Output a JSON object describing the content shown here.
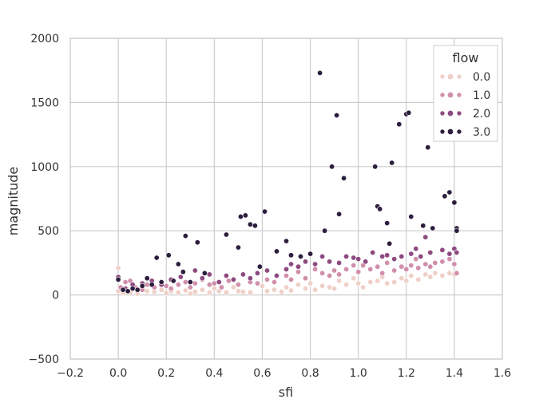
{
  "chart_data": {
    "type": "scatter",
    "xlabel": "sfi",
    "ylabel": "magnitude",
    "xlim": [
      -0.2,
      1.6
    ],
    "ylim": [
      -500,
      2000
    ],
    "xticks": [
      "−0.2",
      "0.0",
      "0.2",
      "0.4",
      "0.6",
      "0.8",
      "1.0",
      "1.2",
      "1.4",
      "1.6"
    ],
    "yticks": [
      "−500",
      "0",
      "500",
      "1000",
      "1500",
      "2000"
    ],
    "grid": true,
    "legend": {
      "title": "flow",
      "placement": "top-right"
    },
    "series": [
      {
        "name": "0.0",
        "color": "#efd0c8",
        "points": [
          [
            0.0,
            210
          ],
          [
            0.0,
            30
          ],
          [
            0.02,
            15
          ],
          [
            0.05,
            20
          ],
          [
            0.08,
            10
          ],
          [
            0.12,
            30
          ],
          [
            0.15,
            25
          ],
          [
            0.18,
            40
          ],
          [
            0.2,
            15
          ],
          [
            0.22,
            30
          ],
          [
            0.25,
            20
          ],
          [
            0.28,
            35
          ],
          [
            0.3,
            10
          ],
          [
            0.32,
            25
          ],
          [
            0.35,
            40
          ],
          [
            0.38,
            20
          ],
          [
            0.4,
            50
          ],
          [
            0.42,
            30
          ],
          [
            0.45,
            20
          ],
          [
            0.48,
            60
          ],
          [
            0.5,
            30
          ],
          [
            0.52,
            25
          ],
          [
            0.55,
            20
          ],
          [
            0.6,
            70
          ],
          [
            0.62,
            30
          ],
          [
            0.65,
            40
          ],
          [
            0.68,
            25
          ],
          [
            0.7,
            60
          ],
          [
            0.72,
            35
          ],
          [
            0.75,
            80
          ],
          [
            0.78,
            50
          ],
          [
            0.8,
            90
          ],
          [
            0.82,
            40
          ],
          [
            0.85,
            70
          ],
          [
            0.88,
            60
          ],
          [
            0.9,
            50
          ],
          [
            0.92,
            110
          ],
          [
            0.95,
            80
          ],
          [
            0.98,
            130
          ],
          [
            1.0,
            90
          ],
          [
            1.02,
            60
          ],
          [
            1.05,
            100
          ],
          [
            1.08,
            110
          ],
          [
            1.1,
            140
          ],
          [
            1.12,
            90
          ],
          [
            1.15,
            100
          ],
          [
            1.18,
            130
          ],
          [
            1.2,
            110
          ],
          [
            1.22,
            150
          ],
          [
            1.25,
            120
          ],
          [
            1.28,
            160
          ],
          [
            1.3,
            140
          ],
          [
            1.32,
            170
          ],
          [
            1.35,
            150
          ],
          [
            1.38,
            170
          ],
          [
            1.4,
            160
          ]
        ]
      },
      {
        "name": "1.0",
        "color": "#d08fab",
        "points": [
          [
            0.01,
            60
          ],
          [
            0.03,
            100
          ],
          [
            0.05,
            110
          ],
          [
            0.07,
            60
          ],
          [
            0.1,
            40
          ],
          [
            0.12,
            80
          ],
          [
            0.15,
            60
          ],
          [
            0.18,
            90
          ],
          [
            0.2,
            70
          ],
          [
            0.22,
            50
          ],
          [
            0.25,
            80
          ],
          [
            0.28,
            100
          ],
          [
            0.3,
            60
          ],
          [
            0.32,
            90
          ],
          [
            0.35,
            120
          ],
          [
            0.38,
            80
          ],
          [
            0.4,
            90
          ],
          [
            0.43,
            60
          ],
          [
            0.46,
            110
          ],
          [
            0.5,
            80
          ],
          [
            0.55,
            100
          ],
          [
            0.58,
            90
          ],
          [
            0.62,
            120
          ],
          [
            0.65,
            100
          ],
          [
            0.7,
            150
          ],
          [
            0.72,
            120
          ],
          [
            0.75,
            180
          ],
          [
            0.78,
            130
          ],
          [
            0.82,
            200
          ],
          [
            0.85,
            170
          ],
          [
            0.88,
            150
          ],
          [
            0.9,
            190
          ],
          [
            0.92,
            160
          ],
          [
            0.95,
            200
          ],
          [
            0.98,
            230
          ],
          [
            1.0,
            180
          ],
          [
            1.02,
            230
          ],
          [
            1.05,
            200
          ],
          [
            1.08,
            220
          ],
          [
            1.1,
            170
          ],
          [
            1.12,
            250
          ],
          [
            1.15,
            190
          ],
          [
            1.18,
            220
          ],
          [
            1.2,
            200
          ],
          [
            1.22,
            230
          ],
          [
            1.24,
            280
          ],
          [
            1.25,
            210
          ],
          [
            1.28,
            240
          ],
          [
            1.3,
            220
          ],
          [
            1.32,
            250
          ],
          [
            1.35,
            260
          ],
          [
            1.38,
            280
          ],
          [
            1.4,
            240
          ],
          [
            1.41,
            170
          ]
        ]
      },
      {
        "name": "2.0",
        "color": "#8d4a80",
        "points": [
          [
            0.0,
            140
          ],
          [
            0.03,
            50
          ],
          [
            0.06,
            80
          ],
          [
            0.1,
            90
          ],
          [
            0.14,
            110
          ],
          [
            0.18,
            80
          ],
          [
            0.22,
            120
          ],
          [
            0.26,
            140
          ],
          [
            0.3,
            100
          ],
          [
            0.32,
            190
          ],
          [
            0.35,
            130
          ],
          [
            0.38,
            160
          ],
          [
            0.42,
            100
          ],
          [
            0.45,
            150
          ],
          [
            0.48,
            120
          ],
          [
            0.52,
            160
          ],
          [
            0.55,
            130
          ],
          [
            0.58,
            170
          ],
          [
            0.62,
            190
          ],
          [
            0.66,
            150
          ],
          [
            0.7,
            200
          ],
          [
            0.72,
            240
          ],
          [
            0.75,
            220
          ],
          [
            0.78,
            260
          ],
          [
            0.82,
            240
          ],
          [
            0.85,
            300
          ],
          [
            0.88,
            260
          ],
          [
            0.92,
            250
          ],
          [
            0.95,
            300
          ],
          [
            0.98,
            290
          ],
          [
            1.0,
            280
          ],
          [
            1.03,
            260
          ],
          [
            1.06,
            330
          ],
          [
            1.1,
            300
          ],
          [
            1.12,
            310
          ],
          [
            1.15,
            280
          ],
          [
            1.18,
            300
          ],
          [
            1.22,
            320
          ],
          [
            1.24,
            360
          ],
          [
            1.26,
            300
          ],
          [
            1.28,
            450
          ],
          [
            1.3,
            330
          ],
          [
            1.35,
            350
          ],
          [
            1.38,
            320
          ],
          [
            1.4,
            360
          ],
          [
            1.41,
            330
          ]
        ]
      },
      {
        "name": "3.0",
        "color": "#2d1e3e",
        "points": [
          [
            0.0,
            120
          ],
          [
            0.02,
            40
          ],
          [
            0.04,
            30
          ],
          [
            0.06,
            50
          ],
          [
            0.08,
            40
          ],
          [
            0.1,
            70
          ],
          [
            0.12,
            130
          ],
          [
            0.14,
            80
          ],
          [
            0.16,
            290
          ],
          [
            0.18,
            100
          ],
          [
            0.21,
            310
          ],
          [
            0.23,
            110
          ],
          [
            0.25,
            240
          ],
          [
            0.27,
            180
          ],
          [
            0.28,
            460
          ],
          [
            0.3,
            100
          ],
          [
            0.33,
            410
          ],
          [
            0.36,
            170
          ],
          [
            0.45,
            470
          ],
          [
            0.5,
            370
          ],
          [
            0.51,
            610
          ],
          [
            0.53,
            620
          ],
          [
            0.55,
            550
          ],
          [
            0.57,
            540
          ],
          [
            0.59,
            220
          ],
          [
            0.61,
            650
          ],
          [
            0.66,
            340
          ],
          [
            0.7,
            420
          ],
          [
            0.72,
            310
          ],
          [
            0.76,
            300
          ],
          [
            0.8,
            320
          ],
          [
            0.84,
            1730
          ],
          [
            0.86,
            500
          ],
          [
            0.89,
            1000
          ],
          [
            0.91,
            1400
          ],
          [
            0.92,
            630
          ],
          [
            0.94,
            910
          ],
          [
            1.07,
            1000
          ],
          [
            1.08,
            690
          ],
          [
            1.09,
            670
          ],
          [
            1.12,
            560
          ],
          [
            1.13,
            400
          ],
          [
            1.14,
            1030
          ],
          [
            1.17,
            1330
          ],
          [
            1.2,
            1410
          ],
          [
            1.21,
            1420
          ],
          [
            1.22,
            610
          ],
          [
            1.27,
            540
          ],
          [
            1.29,
            1150
          ],
          [
            1.31,
            520
          ],
          [
            1.36,
            770
          ],
          [
            1.38,
            800
          ],
          [
            1.4,
            720
          ],
          [
            1.41,
            520
          ],
          [
            1.41,
            500
          ]
        ]
      }
    ]
  }
}
